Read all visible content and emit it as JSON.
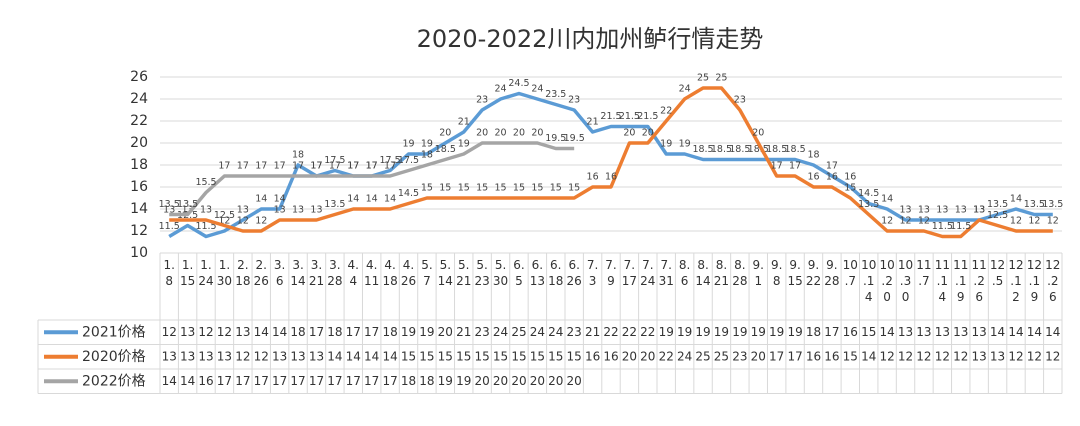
{
  "chart_data": {
    "type": "line",
    "title": "2020-2022川内加州鲈行情走势",
    "categories": [
      "1.8",
      "1.15",
      "1.24",
      "1.30",
      "2.18",
      "2.26",
      "3.6",
      "3.14",
      "3.21",
      "3.28",
      "4.4",
      "4.11",
      "4.18",
      "4.26",
      "5.7",
      "5.14",
      "5.21",
      "5.23",
      "5.30",
      "6.5",
      "6.13",
      "6.18",
      "6.26",
      "7.3",
      "7.9",
      "7.17",
      "7.24",
      "7.31",
      "8.6",
      "8.14",
      "8.21",
      "8.28",
      "9.1",
      "9.8",
      "9.15",
      "9.22",
      "9.28",
      "10.7",
      "10.14",
      "10.20",
      "10.30",
      "11.7",
      "11.14",
      "11.19",
      "11.26",
      "12.5",
      "12.12",
      "12.19",
      "12.26"
    ],
    "series": [
      {
        "name": "2021价格",
        "color": "#5b9bd5",
        "values": [
          11.5,
          12.5,
          11.5,
          12,
          13,
          14,
          14,
          18,
          17,
          17.5,
          17,
          17,
          17.5,
          19,
          19,
          20,
          21,
          23,
          24,
          24.5,
          24,
          23.5,
          23,
          21,
          21.5,
          21.5,
          21.5,
          19,
          19,
          18.5,
          18.5,
          18.5,
          18.5,
          18.5,
          18.5,
          18,
          17,
          16,
          14.5,
          14,
          13,
          13,
          13,
          13,
          13,
          13.5,
          14,
          13.5,
          13.5
        ],
        "table_values": [
          12,
          13,
          12,
          12,
          13,
          14,
          14,
          18,
          17,
          18,
          17,
          17,
          18,
          19,
          19,
          20,
          21,
          23,
          24,
          25,
          24,
          24,
          23,
          21,
          22,
          22,
          22,
          19,
          19,
          19,
          19,
          19,
          19,
          19,
          19,
          18,
          17,
          16,
          15,
          14,
          13,
          13,
          13,
          13,
          13,
          14,
          14,
          14,
          14
        ]
      },
      {
        "name": "2020价格",
        "color": "#ed7d31",
        "values": [
          13,
          13,
          13,
          12.5,
          12,
          12,
          13,
          13,
          13,
          13.5,
          14,
          14,
          14,
          14.5,
          15,
          15,
          15,
          15,
          15,
          15,
          15,
          15,
          15,
          16,
          16,
          20,
          20,
          22,
          24,
          25,
          25,
          23,
          20,
          17,
          17,
          16,
          16,
          15,
          13.5,
          12,
          12,
          12,
          11.5,
          11.5,
          13,
          12.5,
          12,
          12,
          12
        ],
        "table_values": [
          13,
          13,
          13,
          13,
          12,
          12,
          13,
          13,
          13,
          14,
          14,
          14,
          14,
          15,
          15,
          15,
          15,
          15,
          15,
          15,
          15,
          15,
          15,
          16,
          16,
          20,
          20,
          22,
          24,
          25,
          25,
          23,
          20,
          17,
          17,
          16,
          16,
          15,
          14,
          12,
          12,
          12,
          12,
          12,
          13,
          13,
          12,
          12,
          12
        ]
      },
      {
        "name": "2022价格",
        "color": "#a5a5a5",
        "values": [
          13.5,
          13.5,
          15.5,
          17,
          17,
          17,
          17,
          17,
          17,
          17,
          17,
          17,
          17,
          17.5,
          18,
          18.5,
          19,
          20,
          20,
          20,
          20,
          19.5,
          19.5,
          null,
          null,
          null,
          null,
          null,
          null,
          null,
          null,
          null,
          null,
          null,
          null,
          null,
          null,
          null,
          null,
          null,
          null,
          null,
          null,
          null,
          null,
          null,
          null,
          null,
          null
        ],
        "table_values": [
          14,
          14,
          16,
          17,
          17,
          17,
          17,
          17,
          17,
          17,
          17,
          17,
          17,
          18,
          18,
          19,
          19,
          20,
          20,
          20,
          20,
          20,
          20
        ]
      }
    ],
    "ylim": [
      10,
      26
    ],
    "yticks": [
      10,
      12,
      14,
      16,
      18,
      20,
      22,
      24,
      26
    ],
    "grid": true
  }
}
